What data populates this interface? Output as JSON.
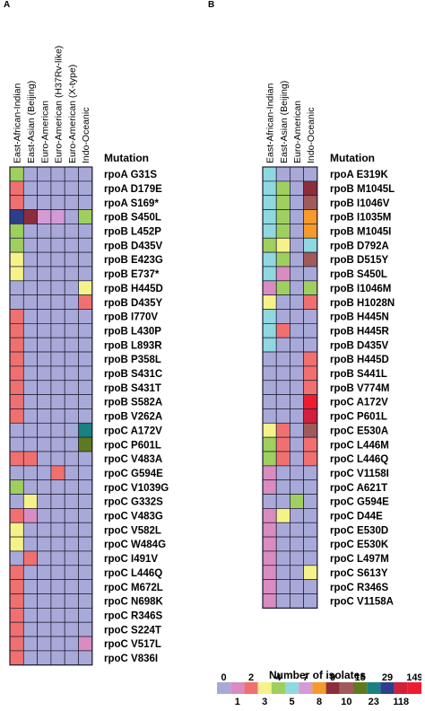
{
  "panels": [
    {
      "letter": "A",
      "mutation_header": "Mutation",
      "columns": [
        "East-African-Indian",
        "East-Asian (Beijing)",
        "Euro-American",
        "Euro-American (H37Rv-like)",
        "Euro-American (X-type)",
        "Indo-Oceanic"
      ]
    },
    {
      "letter": "B",
      "mutation_header": "Mutation",
      "columns": [
        "East-African-Indian",
        "East-Asian (Beijing)",
        "Euro-American",
        "Indo-Oceanic"
      ]
    }
  ],
  "legend": {
    "title": "Number of isolates",
    "top_labels": [
      "0",
      "2",
      "4",
      "7",
      "9",
      "15",
      "29",
      "149"
    ],
    "bottom_labels": [
      "1",
      "3",
      "5",
      "8",
      "10",
      "23",
      "118"
    ],
    "bins": [
      "0",
      "1",
      "2",
      "3",
      "4",
      "5",
      "7",
      "8",
      "9",
      "10",
      "15",
      "23",
      "29",
      "118",
      "149"
    ],
    "colors": [
      "#a9a9d9",
      "#d98cbf",
      "#f07070",
      "#f5f28a",
      "#9fcf5f",
      "#8fd8e0",
      "#d49ad6",
      "#f59a2b",
      "#8c2d3d",
      "#a05a5a",
      "#5e7a1e",
      "#1a8080",
      "#2c3e8c",
      "#d21f3c",
      "#ee1c2e"
    ]
  },
  "chart_data": [
    {
      "type": "heatmap",
      "panel": "A",
      "columns": [
        "East-African-Indian",
        "East-Asian (Beijing)",
        "Euro-American",
        "Euro-American (H37Rv-like)",
        "Euro-American (X-type)",
        "Indo-Oceanic"
      ],
      "rows": [
        "rpoA G31S",
        "rpoA D179E",
        "rpoA S169*",
        "rpoB S450L",
        "rpoB L452P",
        "rpoB D435V",
        "rpoB E423G",
        "rpoB E737*",
        "rpoB H445D",
        "rpoB D435Y",
        "rpoB I770V",
        "rpoB L430P",
        "rpoB L893R",
        "rpoB P358L",
        "rpoB S431C",
        "rpoB S431T",
        "rpoB S582A",
        "rpoB V262A",
        "rpoC A172V",
        "rpoC P601L",
        "rpoC V483A",
        "rpoC G594E",
        "rpoC V1039G",
        "rpoC G332S",
        "rpoC V483G",
        "rpoC V582L",
        "rpoC W484G",
        "rpoC I491V",
        "rpoC L446Q",
        "rpoC M672L",
        "rpoC N698K",
        "rpoC R346S",
        "rpoC S224T",
        "rpoC V517L",
        "rpoC V836I"
      ],
      "values": [
        [
          4,
          0,
          0,
          0,
          0,
          0
        ],
        [
          2,
          0,
          0,
          0,
          0,
          0
        ],
        [
          2,
          0,
          0,
          0,
          0,
          0
        ],
        [
          29,
          9,
          7,
          7,
          0,
          4
        ],
        [
          4,
          0,
          0,
          0,
          0,
          0
        ],
        [
          4,
          0,
          0,
          0,
          0,
          0
        ],
        [
          3,
          0,
          0,
          0,
          0,
          0
        ],
        [
          3,
          0,
          0,
          0,
          0,
          0
        ],
        [
          0,
          0,
          0,
          0,
          0,
          3
        ],
        [
          0,
          0,
          0,
          0,
          0,
          2
        ],
        [
          2,
          0,
          0,
          0,
          0,
          0
        ],
        [
          2,
          0,
          0,
          0,
          0,
          0
        ],
        [
          2,
          0,
          0,
          0,
          0,
          0
        ],
        [
          2,
          0,
          0,
          0,
          0,
          0
        ],
        [
          2,
          0,
          0,
          0,
          0,
          0
        ],
        [
          2,
          0,
          0,
          0,
          0,
          0
        ],
        [
          2,
          0,
          0,
          0,
          0,
          0
        ],
        [
          2,
          0,
          0,
          0,
          0,
          0
        ],
        [
          0,
          0,
          0,
          0,
          0,
          23
        ],
        [
          0,
          0,
          0,
          0,
          0,
          15
        ],
        [
          2,
          2,
          0,
          0,
          0,
          0
        ],
        [
          0,
          0,
          0,
          2,
          0,
          0
        ],
        [
          4,
          0,
          0,
          0,
          0,
          0
        ],
        [
          0,
          3,
          0,
          0,
          0,
          0
        ],
        [
          2,
          1,
          0,
          0,
          0,
          0
        ],
        [
          3,
          0,
          0,
          0,
          0,
          0
        ],
        [
          3,
          0,
          0,
          0,
          0,
          0
        ],
        [
          0,
          2,
          0,
          0,
          0,
          0
        ],
        [
          2,
          0,
          0,
          0,
          0,
          0
        ],
        [
          2,
          0,
          0,
          0,
          0,
          0
        ],
        [
          2,
          0,
          0,
          0,
          0,
          0
        ],
        [
          2,
          0,
          0,
          0,
          0,
          0
        ],
        [
          2,
          0,
          0,
          0,
          0,
          0
        ],
        [
          2,
          0,
          0,
          0,
          0,
          1
        ],
        [
          2,
          0,
          0,
          0,
          0,
          0
        ]
      ]
    },
    {
      "type": "heatmap",
      "panel": "B",
      "columns": [
        "East-African-Indian",
        "East-Asian (Beijing)",
        "Euro-American",
        "Indo-Oceanic"
      ],
      "rows": [
        "rpoA E319K",
        "rpoB M1045L",
        "rpoB I1046V",
        "rpoB I1035M",
        "rpoB M1045I",
        "rpoB D792A",
        "rpoB D515Y",
        "rpoB S450L",
        "rpoB I1046M",
        "rpoB H1028N",
        "rpoB H445N",
        "rpoB H445R",
        "rpoB D435V",
        "rpoB H445D",
        "rpoB S441L",
        "rpoB V774M",
        "rpoC A172V",
        "rpoC P601L",
        "rpoC E530A",
        "rpoC L446M",
        "rpoC L446Q",
        "rpoC V1158I",
        "rpoC A621T",
        "rpoC G594E",
        "rpoC D44E",
        "rpoC E530D",
        "rpoC E530K",
        "rpoC L497M",
        "rpoC S613Y",
        "rpoC R346S",
        "rpoC V1158A"
      ],
      "values": [
        [
          5,
          0,
          0,
          0
        ],
        [
          5,
          4,
          0,
          9
        ],
        [
          5,
          4,
          0,
          10
        ],
        [
          5,
          4,
          0,
          8
        ],
        [
          5,
          4,
          0,
          8
        ],
        [
          4,
          3,
          0,
          5
        ],
        [
          5,
          4,
          0,
          10
        ],
        [
          5,
          1,
          0,
          0
        ],
        [
          1,
          4,
          0,
          4
        ],
        [
          3,
          0,
          0,
          2
        ],
        [
          5,
          0,
          0,
          0
        ],
        [
          5,
          2,
          0,
          0
        ],
        [
          5,
          0,
          0,
          0
        ],
        [
          0,
          0,
          0,
          2
        ],
        [
          0,
          0,
          0,
          2
        ],
        [
          0,
          0,
          0,
          2
        ],
        [
          0,
          0,
          0,
          149
        ],
        [
          0,
          0,
          0,
          118
        ],
        [
          3,
          2,
          0,
          10
        ],
        [
          4,
          2,
          0,
          2
        ],
        [
          4,
          2,
          0,
          2
        ],
        [
          1,
          0,
          0,
          0
        ],
        [
          1,
          0,
          0,
          0
        ],
        [
          0,
          0,
          4,
          0
        ],
        [
          1,
          3,
          0,
          0
        ],
        [
          1,
          0,
          0,
          0
        ],
        [
          1,
          0,
          0,
          0
        ],
        [
          1,
          0,
          0,
          0
        ],
        [
          1,
          0,
          0,
          3
        ],
        [
          1,
          0,
          0,
          0
        ],
        [
          1,
          0,
          0,
          0
        ]
      ]
    }
  ]
}
